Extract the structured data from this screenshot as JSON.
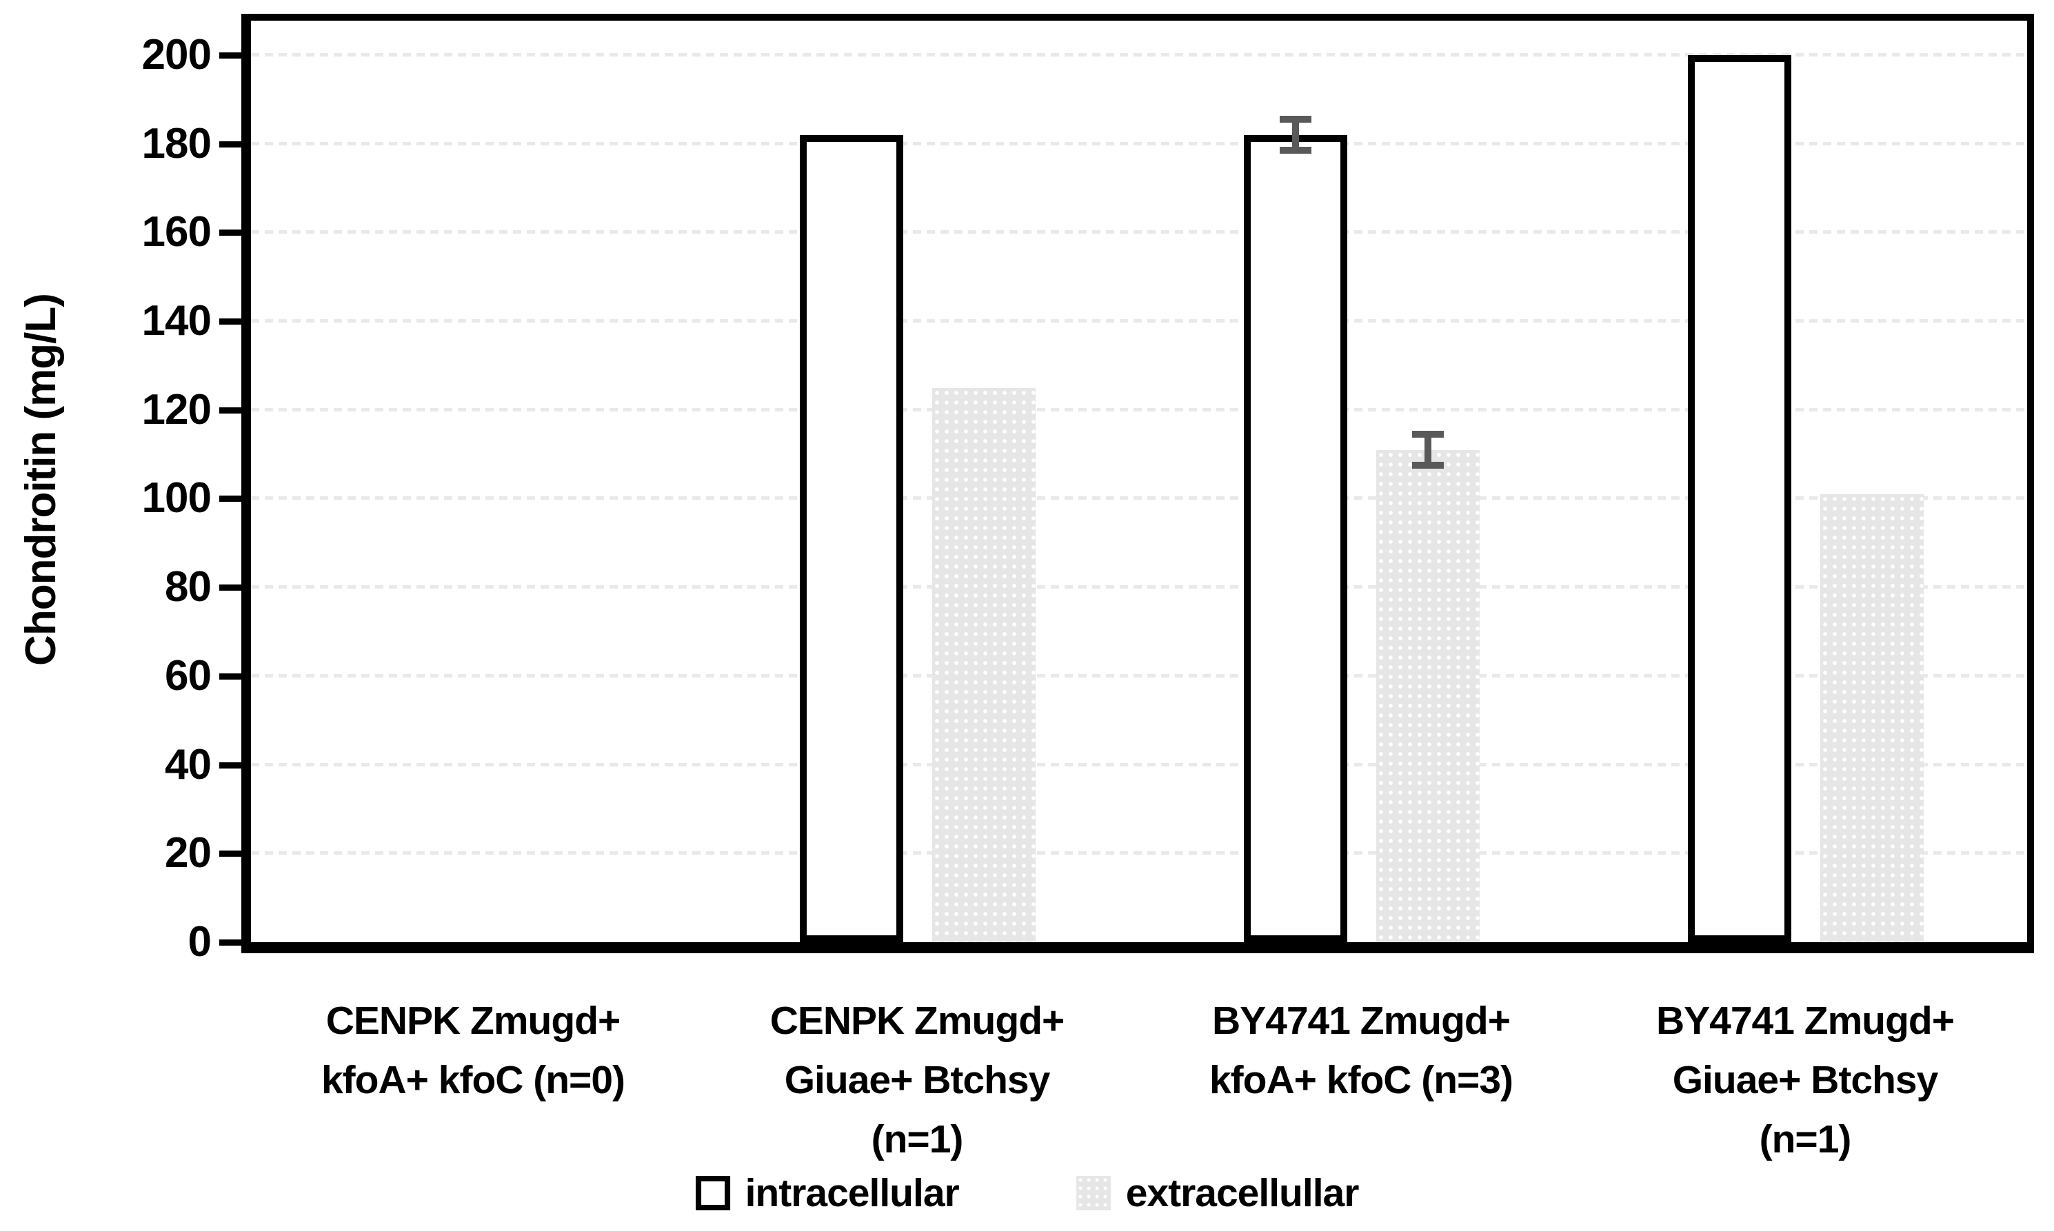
{
  "chart_data": {
    "type": "bar",
    "title": "",
    "ylabel": "Chondroitin (mg/L)",
    "xlabel": "",
    "ylim": [
      0,
      200
    ],
    "ytick_step": 20,
    "yticks": [
      0,
      20,
      40,
      60,
      80,
      100,
      120,
      140,
      160,
      180,
      200
    ],
    "grid": "horizontal-dotted",
    "legend_position": "bottom",
    "categories": [
      {
        "label": "CENPK Zmugd+ kfoA+ kfoC (n=0)",
        "lines": [
          "CENPK Zmugd+",
          "kfoA+ kfoC (n=0)"
        ]
      },
      {
        "label": "CENPK Zmugd+ Giuae+ Btchsy (n=1)",
        "lines": [
          "CENPK Zmugd+",
          "Giuae+ Btchsy",
          "(n=1)"
        ]
      },
      {
        "label": "BY4741 Zmugd+ kfoA+ kfoC (n=3)",
        "lines": [
          "BY4741 Zmugd+",
          "kfoA+ kfoC (n=3)"
        ]
      },
      {
        "label": "BY4741 Zmugd+ Giuae+ Btchsy (n=1)",
        "lines": [
          "BY4741 Zmugd+",
          "Giuae+ Btchsy",
          "(n=1)"
        ]
      }
    ],
    "series": [
      {
        "name": "intracellular",
        "style": "intracellular",
        "values": [
          0,
          182,
          182,
          200
        ],
        "errors": [
          null,
          null,
          3.5,
          null
        ]
      },
      {
        "name": "extracellullar",
        "style": "extracellullar",
        "values": [
          0,
          125,
          111,
          101
        ],
        "errors": [
          null,
          null,
          3.5,
          null
        ]
      }
    ]
  },
  "colors": {
    "bar_outline": "#000000",
    "extracellullar_fill": "#e6e6e6",
    "error_bar": "#595959",
    "gridline": "#e9e9e9"
  }
}
